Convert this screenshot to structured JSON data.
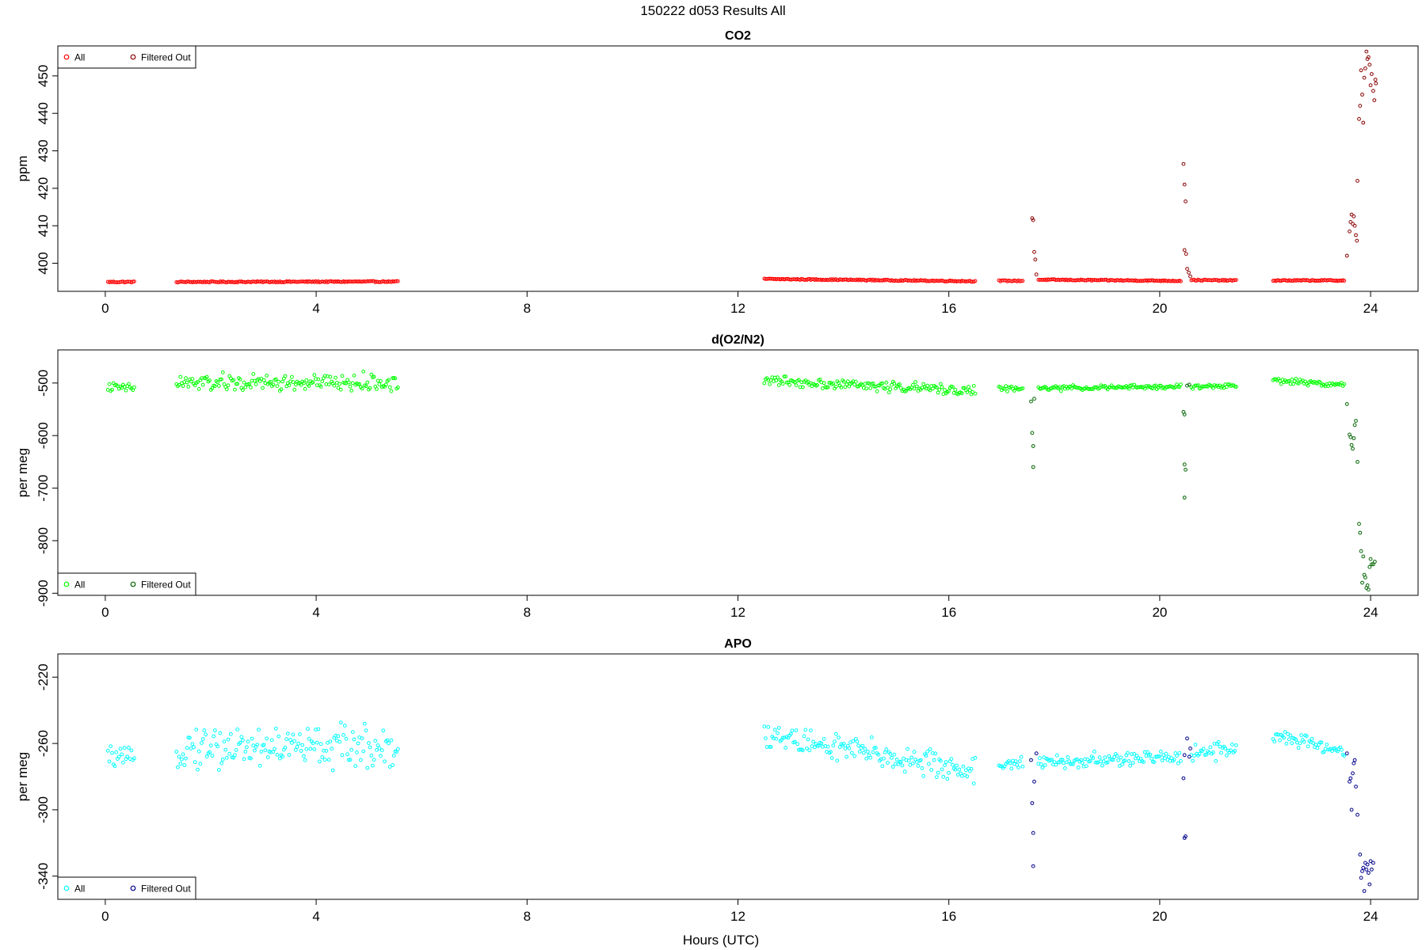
{
  "figure": {
    "title": "150222   d053   Results All",
    "xlabel": "Hours (UTC)"
  },
  "chart_data": [
    {
      "type": "scatter",
      "title": "CO2",
      "ylabel": "ppm",
      "xlim": [
        -0.9,
        24.9
      ],
      "ylim": [
        392.5,
        458
      ],
      "xticks": [
        0,
        4,
        8,
        12,
        16,
        20,
        24
      ],
      "yticks": [
        400,
        410,
        420,
        430,
        440,
        450
      ],
      "grid": false,
      "legend": {
        "position": "top-left",
        "entries": [
          "All",
          "Filtered Out"
        ]
      },
      "colors": {
        "all": "#ff0000",
        "filtered": "#8b0000"
      },
      "segments": [
        {
          "x": [
            0.05,
            0.55
          ],
          "y0": 395.0,
          "y1": 395.0
        },
        {
          "x": [
            1.35,
            5.55
          ],
          "y0": 395.0,
          "y1": 395.1
        },
        {
          "x": [
            12.5,
            16.5
          ],
          "y0": 395.8,
          "y1": 395.2
        },
        {
          "x": [
            16.95,
            17.4
          ],
          "y0": 395.3,
          "y1": 395.3
        },
        {
          "x": [
            17.7,
            20.4
          ],
          "y0": 395.6,
          "y1": 395.3
        },
        {
          "x": [
            20.6,
            21.45
          ],
          "y0": 395.5,
          "y1": 395.4
        },
        {
          "x": [
            22.15,
            23.5
          ],
          "y0": 395.4,
          "y1": 395.4
        }
      ],
      "filtered_points": [
        [
          17.58,
          412.0
        ],
        [
          17.6,
          411.5
        ],
        [
          17.62,
          403.0
        ],
        [
          17.64,
          401.0
        ],
        [
          17.66,
          397.0
        ],
        [
          20.45,
          426.5
        ],
        [
          20.47,
          421.0
        ],
        [
          20.49,
          416.5
        ],
        [
          20.47,
          403.5
        ],
        [
          20.5,
          402.5
        ],
        [
          20.52,
          398.5
        ],
        [
          20.55,
          397.5
        ],
        [
          20.58,
          396.5
        ],
        [
          23.55,
          402.0
        ],
        [
          23.6,
          408.5
        ],
        [
          23.62,
          411.0
        ],
        [
          23.64,
          413.0
        ],
        [
          23.66,
          410.5
        ],
        [
          23.68,
          412.5
        ],
        [
          23.7,
          410.0
        ],
        [
          23.72,
          407.5
        ],
        [
          23.74,
          406.0
        ],
        [
          23.75,
          422.0
        ],
        [
          23.78,
          438.5
        ],
        [
          23.8,
          442.0
        ],
        [
          23.82,
          451.5
        ],
        [
          23.84,
          445.0
        ],
        [
          23.86,
          437.5
        ],
        [
          23.88,
          449.5
        ],
        [
          23.9,
          452.0
        ],
        [
          23.92,
          456.5
        ],
        [
          23.94,
          454.5
        ],
        [
          23.96,
          455.0
        ],
        [
          23.98,
          453.0
        ],
        [
          24.0,
          447.5
        ],
        [
          24.02,
          450.5
        ],
        [
          24.05,
          446.0
        ],
        [
          24.07,
          443.5
        ],
        [
          24.09,
          449.0
        ],
        [
          24.1,
          448.0
        ]
      ]
    },
    {
      "type": "scatter",
      "title": "d(O2/N2)",
      "ylabel": "per meg",
      "xlim": [
        -0.9,
        24.9
      ],
      "ylim": [
        -904,
        -437
      ],
      "xticks": [
        0,
        4,
        8,
        12,
        16,
        20,
        24
      ],
      "yticks": [
        -500,
        -600,
        -700,
        -800,
        -900
      ],
      "grid": false,
      "legend": {
        "position": "bottom-left",
        "entries": [
          "All",
          "Filtered Out"
        ]
      },
      "colors": {
        "all": "#00ff00",
        "filtered": "#006400"
      },
      "segments": [
        {
          "x": [
            0.05,
            0.55
          ],
          "y0": -508,
          "y1": -510,
          "jitter": 8
        },
        {
          "x": [
            1.35,
            5.55
          ],
          "y0": -500,
          "y1": -500,
          "jitter": 15
        },
        {
          "x": [
            12.5,
            16.5
          ],
          "y0": -495,
          "y1": -515,
          "jitter": 9
        },
        {
          "x": [
            16.95,
            17.4
          ],
          "y0": -510,
          "y1": -512,
          "jitter": 5
        },
        {
          "x": [
            17.7,
            20.4
          ],
          "y0": -510,
          "y1": -507,
          "jitter": 4
        },
        {
          "x": [
            20.6,
            21.45
          ],
          "y0": -507,
          "y1": -505,
          "jitter": 5
        },
        {
          "x": [
            22.15,
            23.5
          ],
          "y0": -495,
          "y1": -503,
          "jitter": 5
        }
      ],
      "filtered_points": [
        [
          17.56,
          -535
        ],
        [
          17.58,
          -595
        ],
        [
          17.6,
          -620
        ],
        [
          17.6,
          -660
        ],
        [
          17.62,
          -530
        ],
        [
          20.45,
          -555
        ],
        [
          20.47,
          -560
        ],
        [
          20.47,
          -655
        ],
        [
          20.49,
          -665
        ],
        [
          20.47,
          -718
        ],
        [
          20.52,
          -505
        ],
        [
          20.56,
          -503
        ],
        [
          23.55,
          -540
        ],
        [
          23.6,
          -598
        ],
        [
          23.62,
          -603
        ],
        [
          23.64,
          -618
        ],
        [
          23.66,
          -625
        ],
        [
          23.68,
          -605
        ],
        [
          23.7,
          -580
        ],
        [
          23.72,
          -572
        ],
        [
          23.75,
          -650
        ],
        [
          23.78,
          -768
        ],
        [
          23.8,
          -785
        ],
        [
          23.82,
          -820
        ],
        [
          23.84,
          -880
        ],
        [
          23.86,
          -830
        ],
        [
          23.88,
          -865
        ],
        [
          23.9,
          -870
        ],
        [
          23.92,
          -890
        ],
        [
          23.94,
          -885
        ],
        [
          23.96,
          -893
        ],
        [
          23.98,
          -850
        ],
        [
          24.0,
          -835
        ],
        [
          24.02,
          -845
        ],
        [
          24.05,
          -845
        ],
        [
          24.08,
          -840
        ]
      ]
    },
    {
      "type": "scatter",
      "title": "APO",
      "ylabel": "per meg",
      "xlim": [
        -0.9,
        24.9
      ],
      "ylim": [
        -354,
        -206
      ],
      "xticks": [
        0,
        4,
        8,
        12,
        16,
        20,
        24
      ],
      "yticks": [
        -220,
        -260,
        -300,
        -340
      ],
      "grid": false,
      "legend": {
        "position": "bottom-left",
        "entries": [
          "All",
          "Filtered Out"
        ]
      },
      "colors": {
        "all": "#00ffff",
        "filtered": "#00008b"
      },
      "segments": [
        {
          "x": [
            0.05,
            0.55
          ],
          "y0": -268,
          "y1": -270,
          "jitter": 5
        },
        {
          "x": [
            1.35,
            5.55
          ],
          "y0": -262,
          "y1": -262,
          "jitter": 12
        },
        {
          "x": [
            12.5,
            16.5
          ],
          "y0": -255,
          "y1": -277,
          "jitter": 8
        },
        {
          "x": [
            16.95,
            17.4
          ],
          "y0": -272,
          "y1": -272,
          "jitter": 4
        },
        {
          "x": [
            17.7,
            20.4
          ],
          "y0": -272,
          "y1": -268,
          "jitter": 4
        },
        {
          "x": [
            20.6,
            21.45
          ],
          "y0": -265,
          "y1": -263,
          "jitter": 5
        },
        {
          "x": [
            22.15,
            23.5
          ],
          "y0": -255,
          "y1": -265,
          "jitter": 4
        }
      ],
      "filtered_points": [
        [
          17.56,
          -270
        ],
        [
          17.58,
          -296
        ],
        [
          17.6,
          -314
        ],
        [
          17.6,
          -334
        ],
        [
          17.62,
          -283
        ],
        [
          17.66,
          -266
        ],
        [
          20.45,
          -281
        ],
        [
          20.47,
          -267
        ],
        [
          20.47,
          -317
        ],
        [
          20.49,
          -316
        ],
        [
          20.52,
          -257
        ],
        [
          20.56,
          -268
        ],
        [
          20.58,
          -263
        ],
        [
          23.55,
          -266
        ],
        [
          23.6,
          -283
        ],
        [
          23.62,
          -281
        ],
        [
          23.64,
          -300
        ],
        [
          23.66,
          -278
        ],
        [
          23.68,
          -272
        ],
        [
          23.7,
          -270
        ],
        [
          23.72,
          -286
        ],
        [
          23.75,
          -303
        ],
        [
          23.8,
          -327
        ],
        [
          23.82,
          -341
        ],
        [
          23.84,
          -337
        ],
        [
          23.86,
          -335
        ],
        [
          23.88,
          -349
        ],
        [
          23.9,
          -332
        ],
        [
          23.92,
          -336
        ],
        [
          23.94,
          -333
        ],
        [
          23.96,
          -338
        ],
        [
          23.98,
          -345
        ],
        [
          24.0,
          -331
        ],
        [
          24.02,
          -336
        ],
        [
          24.05,
          -332
        ]
      ]
    }
  ]
}
